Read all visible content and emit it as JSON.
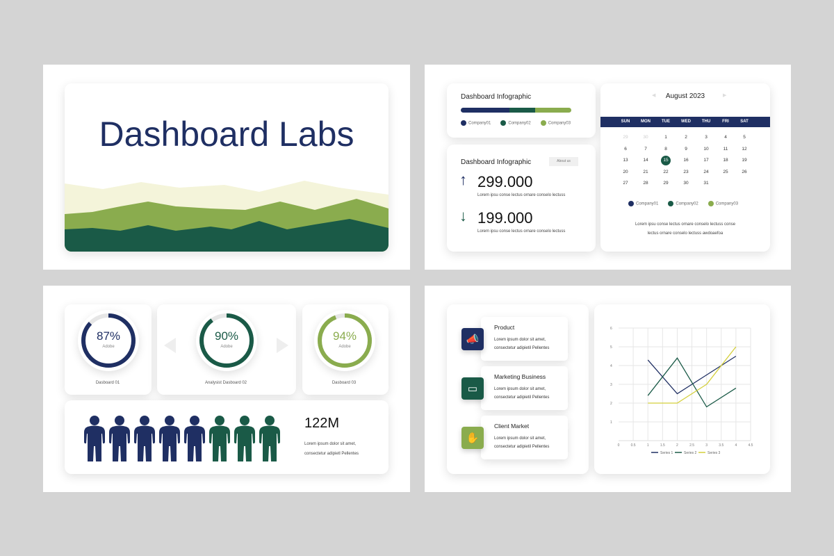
{
  "colors": {
    "navy": "#1f2f63",
    "green": "#1a5a47",
    "light_green": "#8aac4e",
    "yellow": "#d4cf3a",
    "pale": "#f4f4da"
  },
  "slide1": {
    "title": "Dashboard Labs"
  },
  "slide2": {
    "card_a": {
      "title": "Dashboard Infographic",
      "progress": [
        0.44,
        0.23,
        0.33
      ],
      "legend": [
        "Company01",
        "Company02",
        "Company03"
      ]
    },
    "card_b": {
      "title": "Dashboard Infographic",
      "button": "About us",
      "stats": [
        {
          "value": "299.000",
          "text": "Lorem ipsu conse lectus ornare conselo lectuss",
          "dir": "up"
        },
        {
          "value": "199.000",
          "text": "Lorem ipsu conse lectus ornare conselo lectuss",
          "dir": "down"
        }
      ]
    },
    "calendar": {
      "month": "August 2023",
      "days": [
        "SUN",
        "MON",
        "TUE",
        "WED",
        "THU",
        "FRI",
        "SAT"
      ],
      "dates": [
        [
          "29",
          "30",
          "1",
          "2",
          "3",
          "4",
          "5"
        ],
        [
          "6",
          "7",
          "8",
          "9",
          "10",
          "11",
          "12"
        ],
        [
          "13",
          "14",
          "15",
          "16",
          "17",
          "18",
          "19"
        ],
        [
          "20",
          "21",
          "22",
          "23",
          "24",
          "25",
          "26"
        ],
        [
          "27",
          "28",
          "29",
          "30",
          "31",
          "",
          ""
        ]
      ],
      "selected": "15",
      "legend": [
        "Company01",
        "Company02",
        "Company03"
      ],
      "text_line1": "Lorem ipsu conse lectus ornare conselo lectuss conse",
      "text_line2": "lectus ornare conselo lectuss awdoaefoa"
    }
  },
  "slide3": {
    "rings": [
      {
        "pct": "87%",
        "value": 87,
        "sub": "Adobe",
        "caption": "Dasboard 01"
      },
      {
        "pct": "90%",
        "value": 90,
        "sub": "Adobe",
        "caption": "Analysist Dasboard 02"
      },
      {
        "pct": "94%",
        "value": 94,
        "sub": "Adobe",
        "caption": "Dasboard 03"
      }
    ],
    "people": {
      "total": 8,
      "navy": 5,
      "value": "122M",
      "line1": "Lorem ipsum dolor sit amet,",
      "line2": "consectetur adipietl Pellentes"
    }
  },
  "slide4": {
    "features": [
      {
        "title": "Product",
        "icon": "megaphone-icon",
        "line1": "Lorem ipsum dolor sit amet,",
        "line2": "consectetur adipietil Pellentes"
      },
      {
        "title": "Marketing Business",
        "icon": "laptop-icon",
        "line1": "Lorem ipsum dolor sit amet,",
        "line2": "consectetur adipietil Pellentes"
      },
      {
        "title": "Client Market",
        "icon": "hand-coin-icon",
        "line1": "Lorem ipsum dolor sit amet,",
        "line2": "consectetur adipietil Pellentes"
      }
    ]
  },
  "chart_data": {
    "type": "line",
    "title": "",
    "xlabel": "",
    "ylabel": "",
    "xlim": [
      0,
      4.5
    ],
    "ylim": [
      0,
      6
    ],
    "xticks": [
      "0",
      "0.5",
      "1",
      "1.5",
      "2",
      "2.5",
      "3",
      "3.5",
      "4",
      "4.5"
    ],
    "yticks": [
      "1",
      "2",
      "3",
      "4",
      "5",
      "6"
    ],
    "x": [
      1,
      2,
      3,
      4
    ],
    "series": [
      {
        "name": "Series 1",
        "color": "#1f2f63",
        "values": [
          4.3,
          2.5,
          3.5,
          4.5
        ]
      },
      {
        "name": "Series 2",
        "color": "#1a5a47",
        "values": [
          2.4,
          4.4,
          1.8,
          2.8
        ]
      },
      {
        "name": "Series 3",
        "color": "#d4cf3a",
        "values": [
          2,
          2,
          3,
          5
        ]
      }
    ],
    "grid": true,
    "legend": "bottom"
  }
}
